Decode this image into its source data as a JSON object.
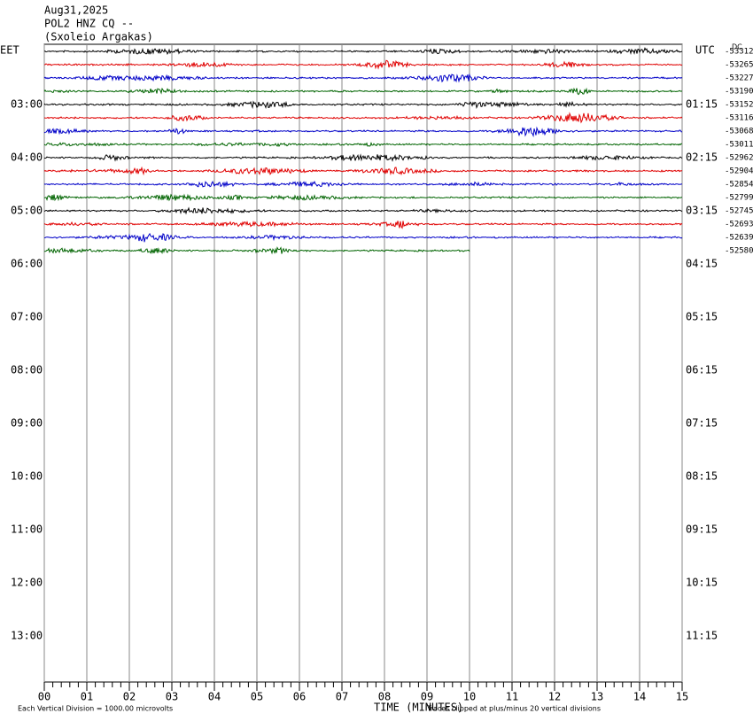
{
  "header": {
    "date": "Aug31,2025",
    "station": "POL2 HNZ CQ --",
    "site": "(Sxoleio Argakas)"
  },
  "left_axis": {
    "title": "EET",
    "labels": [
      "03:00",
      "04:00",
      "05:00",
      "06:00",
      "07:00",
      "08:00",
      "09:00",
      "10:00",
      "11:00",
      "12:00",
      "13:00"
    ]
  },
  "right_axis": {
    "title": "UTC",
    "labels": [
      "01:15",
      "02:15",
      "03:15",
      "04:15",
      "05:15",
      "06:15",
      "07:15",
      "08:15",
      "09:15",
      "10:15",
      "11:15"
    ]
  },
  "dc_label": "DC",
  "trace_offsets": [
    "-53312",
    "-53265",
    "-53227",
    "-53190",
    "-53152",
    "-53116",
    "-53068",
    "-53011",
    "-52962",
    "-52904",
    "-52854",
    "-52799",
    "-52745",
    "-52693",
    "-52639",
    "-52580"
  ],
  "x_axis": {
    "labels": [
      "00",
      "01",
      "02",
      "03",
      "04",
      "05",
      "06",
      "07",
      "08",
      "09",
      "10",
      "11",
      "12",
      "13",
      "14",
      "15"
    ],
    "title": "TIME (MINUTES)"
  },
  "footer": {
    "scale": "Each Vertical Division = 1000.00 microvolts",
    "clip": "Traces clipped at plus/minus 20 vertical divisions"
  }
}
